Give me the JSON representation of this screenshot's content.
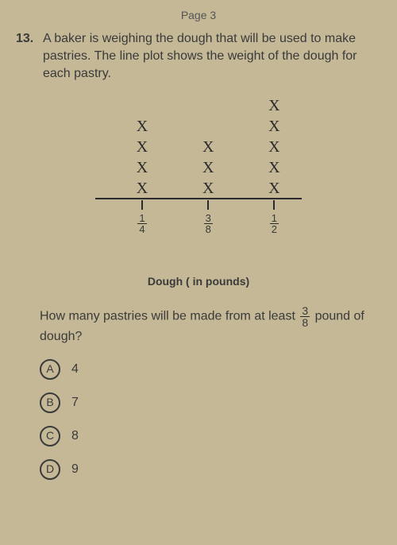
{
  "page_header": "Page 3",
  "question": {
    "number": "13.",
    "text": "A baker is weighing the dough that will be used to make pastries. The line plot shows the weight of the dough for each pastry."
  },
  "chart": {
    "type": "line-plot",
    "x_mark_glyph": "X",
    "x_mark_fontsize": 20,
    "axis_label": "Dough ( in pounds)",
    "axis_label_fontsize": 14,
    "background_color": "#c4b896",
    "text_color": "#2b2b2b",
    "columns": [
      {
        "label_num": "1",
        "label_den": "4",
        "count": 4,
        "pos_pct": 15
      },
      {
        "label_num": "3",
        "label_den": "8",
        "count": 3,
        "pos_pct": 47
      },
      {
        "label_num": "1",
        "label_den": "2",
        "count": 5,
        "pos_pct": 79
      }
    ]
  },
  "subquestion": {
    "before": "How many pastries will be made from at least ",
    "frac_num": "3",
    "frac_den": "8",
    "after": " pound of dough?"
  },
  "choices": [
    {
      "letter": "A",
      "value": "4"
    },
    {
      "letter": "B",
      "value": "7"
    },
    {
      "letter": "C",
      "value": "8"
    },
    {
      "letter": "D",
      "value": "9"
    }
  ]
}
